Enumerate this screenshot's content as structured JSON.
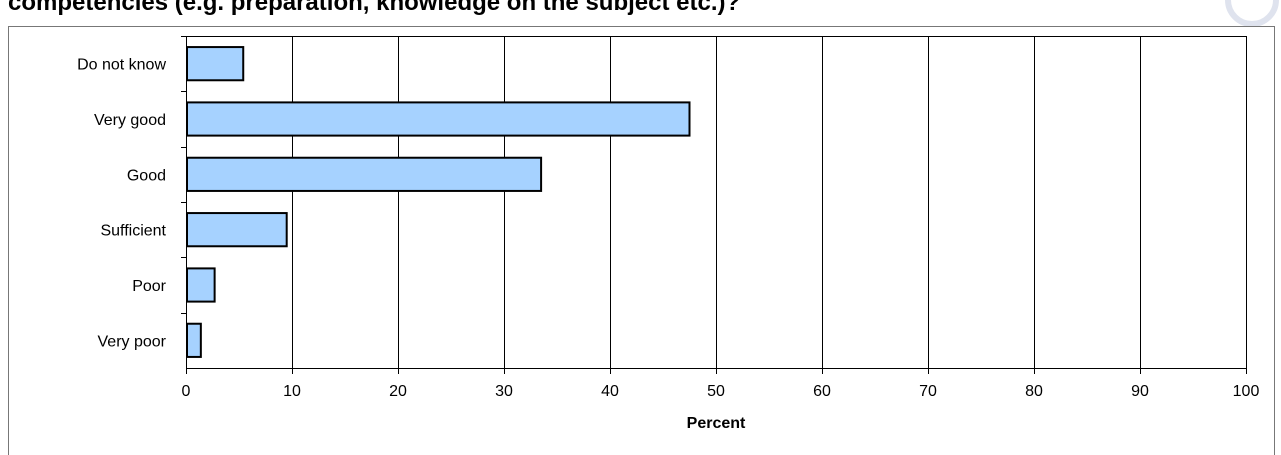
{
  "title": "competencies (e.g. preparation, knowledge on the subject etc.)?",
  "logo_icon": "circle-logo-icon",
  "chart_data": {
    "type": "bar",
    "orientation": "horizontal",
    "categories": [
      "Do not know",
      "Very good",
      "Good",
      "Sufficient",
      "Poor",
      "Very poor"
    ],
    "values": [
      5.4,
      47.5,
      33.5,
      9.5,
      2.7,
      1.4
    ],
    "xlabel": "Percent",
    "ylabel": "",
    "xlim": [
      0,
      100
    ],
    "xticks": [
      0,
      10,
      20,
      30,
      40,
      50,
      60,
      70,
      80,
      90,
      100
    ],
    "grid": "vertical",
    "legend": "none",
    "bar_color": "#a6d2ff",
    "bar_edge_color": "#000000"
  }
}
